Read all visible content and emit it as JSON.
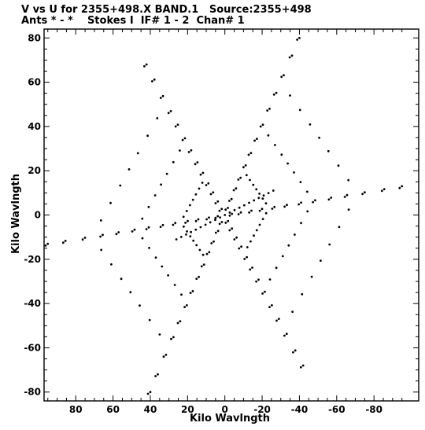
{
  "header": {
    "line1": "V vs U for 2355+498.X BAND.1   Source:2355+498",
    "line2": "Ants * - *    Stokes I  IF# 1 - 2  Chan# 1"
  },
  "chart_data": {
    "type": "scatter",
    "title": "V vs U for 2355+498.X BAND.1   Source:2355+498",
    "subtitle": "Ants * - *    Stokes I  IF# 1 - 2  Chan# 1",
    "xlabel": "Kilo Wavlngth",
    "ylabel": "Kilo Wavlngth",
    "xlim": [
      97,
      -104
    ],
    "ylim": [
      -84,
      84
    ],
    "x_ticks": [
      80,
      60,
      40,
      20,
      0,
      -20,
      -40,
      -60,
      -80
    ],
    "x_tick_labels": [
      "80",
      "60",
      "40",
      "20",
      "0",
      "-20",
      "-40",
      "-60",
      "-80"
    ],
    "y_ticks": [
      80,
      60,
      40,
      20,
      0,
      -20,
      -40,
      -60,
      -80
    ],
    "y_tick_labels": [
      "80",
      "60",
      "40",
      "20",
      "0",
      "-20",
      "-40",
      "-60",
      "-80"
    ],
    "grid": false,
    "legend": "none",
    "marker_color": "#000000",
    "arms": [
      {
        "u": -40,
        "v": 80
      },
      {
        "u": 42,
        "v": 68
      },
      {
        "u": -95,
        "v": 13
      },
      {
        "u": 40,
        "v": -80
      },
      {
        "u": -42,
        "v": -68
      },
      {
        "u": 95,
        "v": -13
      }
    ],
    "arm_samples": [
      0.04,
      0.09,
      0.15,
      0.21,
      0.28,
      0.35,
      0.43,
      0.51,
      0.6,
      0.69,
      0.79,
      0.9,
      1.0
    ],
    "cross_arms": [
      {
        "u": -40,
        "v": 80
      },
      {
        "u": -95,
        "v": 13
      },
      {
        "u": 42,
        "v": 68
      },
      {
        "u": 95,
        "v": -13
      }
    ],
    "cross_samples": [
      0.12,
      0.25,
      0.38,
      0.5,
      0.62,
      0.75,
      0.88
    ],
    "cross_fractions": [
      0.25,
      0.5,
      0.75
    ]
  }
}
